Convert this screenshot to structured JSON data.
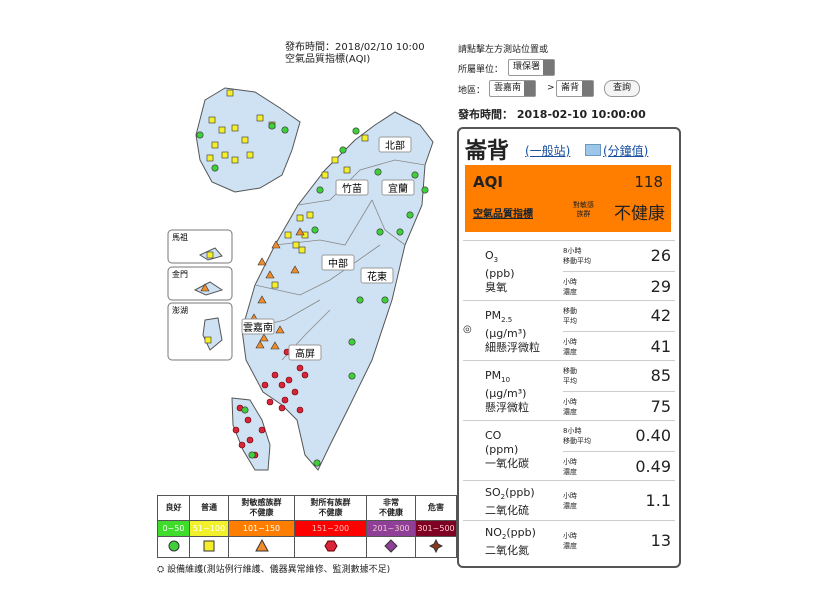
{
  "header": {
    "publish_time": "發布時間：2018/02/10 10:00",
    "subtitle": "空氣品質指標(AQI)"
  },
  "map": {
    "regions": [
      "北部",
      "竹苗",
      "宜蘭",
      "中部",
      "花東",
      "雲嘉南",
      "高屏"
    ],
    "insets": [
      "馬祖",
      "金門",
      "澎湖"
    ]
  },
  "legend": {
    "levels": [
      {
        "name": [
          "良好"
        ],
        "range": "0~50"
      },
      {
        "name": [
          "普通"
        ],
        "range": "51~100"
      },
      {
        "name": [
          "對敏感族群",
          "不健康"
        ],
        "range": "101~150"
      },
      {
        "name": [
          "對所有族群",
          "不健康"
        ],
        "range": "151~200"
      },
      {
        "name": [
          "非常",
          "不健康"
        ],
        "range": "201~300"
      },
      {
        "name": [
          "危害"
        ],
        "range": "301~500"
      }
    ],
    "note": "設備維護(測站例行維護、儀器異常維修、監測數據不足)"
  },
  "query": {
    "prompt": "請點擊左方測站位置或",
    "unit_label": "所屬單位：",
    "unit": "環保署",
    "area_label": "地區：",
    "area": "雲嘉南",
    "separator": ">",
    "station": "崙背",
    "button": "查詢"
  },
  "station": {
    "publish_time": "發布時間： 2018-02-10 10:00:00",
    "name": "崙背",
    "type_link": "(一般站)",
    "minute_link": "(分鐘值)",
    "aqi_label": "AQI",
    "aqi": "118",
    "aqi_name": "空氣品質指標",
    "status_small": [
      "對敏感",
      "族群"
    ],
    "status": "不健康",
    "pollutants": [
      {
        "base": "O",
        "sub": "3",
        "unit": "(ppb)",
        "name": "臭氧",
        "readings": [
          {
            "period": [
              "8小時",
              "移動平均"
            ],
            "value": "26"
          },
          {
            "period": [
              "小時",
              "濃度"
            ],
            "value": "29"
          }
        ]
      },
      {
        "mark": "◎",
        "base": "PM",
        "sub": "2.5",
        "unit": "(μg/m³)",
        "name": "細懸浮微粒",
        "readings": [
          {
            "period": [
              "移動",
              "平均"
            ],
            "value": "42"
          },
          {
            "period": [
              "小時",
              "濃度"
            ],
            "value": "41"
          }
        ]
      },
      {
        "base": "PM",
        "sub": "10",
        "unit": "(μg/m³)",
        "name": "懸浮微粒",
        "readings": [
          {
            "period": [
              "移動",
              "平均"
            ],
            "value": "85"
          },
          {
            "period": [
              "小時",
              "濃度"
            ],
            "value": "75"
          }
        ]
      },
      {
        "base": "CO",
        "unit": "(ppm)",
        "name": "一氧化碳",
        "readings": [
          {
            "period": [
              "8小時",
              "移動平均"
            ],
            "value": "0.40"
          },
          {
            "period": [
              "小時",
              "濃度"
            ],
            "value": "0.49"
          }
        ]
      },
      {
        "base": "SO",
        "sub": "2",
        "suffix": "(ppb)",
        "name": "二氧化硫",
        "readings": [
          {
            "period": [
              "小時",
              "濃度"
            ],
            "value": "1.1"
          }
        ]
      },
      {
        "base": "NO",
        "sub": "2",
        "suffix": "(ppb)",
        "name": "二氧化氮",
        "readings": [
          {
            "period": [
              "小時",
              "濃度"
            ],
            "value": "13"
          }
        ]
      }
    ]
  }
}
